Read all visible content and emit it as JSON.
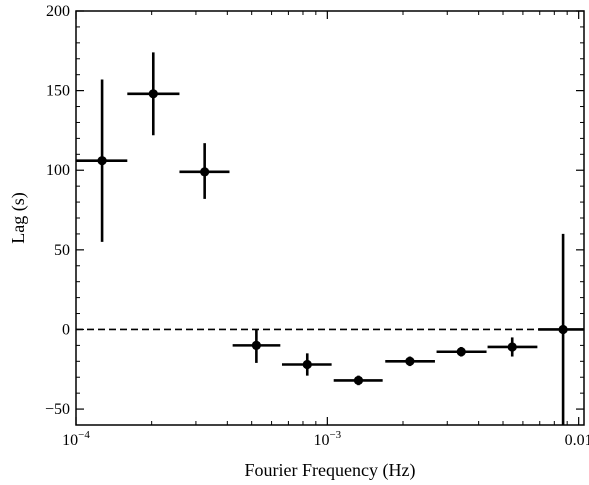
{
  "chart_data": {
    "type": "scatter",
    "title": "",
    "xlabel": "Fourier Frequency (Hz)",
    "ylabel": "Lag (s)",
    "xscale": "log",
    "xlim": [
      0.0001,
      0.0105
    ],
    "ylim": [
      -60,
      200
    ],
    "x_ticks": [
      {
        "value": 0.0001,
        "base": "10",
        "exp": "−4"
      },
      {
        "value": 0.001,
        "base": "10",
        "exp": "−3"
      },
      {
        "value": 0.01,
        "base": "0.01",
        "exp": ""
      }
    ],
    "y_ticks": [
      {
        "value": -50,
        "label": "−50"
      },
      {
        "value": 0,
        "label": "0"
      },
      {
        "value": 50,
        "label": "50"
      },
      {
        "value": 100,
        "label": "100"
      },
      {
        "value": 150,
        "label": "150"
      },
      {
        "value": 200,
        "label": "200"
      }
    ],
    "reference_line": {
      "y": 0,
      "style": "dashed"
    },
    "points": [
      {
        "x": 0.000127,
        "y": 106,
        "x_lo": 0.0001,
        "x_hi": 0.00016,
        "y_lo": 55,
        "y_hi": 157
      },
      {
        "x": 0.000203,
        "y": 148,
        "x_lo": 0.00016,
        "x_hi": 0.000258,
        "y_lo": 122,
        "y_hi": 174
      },
      {
        "x": 0.000325,
        "y": 99,
        "x_lo": 0.000258,
        "x_hi": 0.000408,
        "y_lo": 82,
        "y_hi": 117
      },
      {
        "x": 0.000522,
        "y": -10,
        "x_lo": 0.00042,
        "x_hi": 0.00065,
        "y_lo": -21,
        "y_hi": 0
      },
      {
        "x": 0.000832,
        "y": -22,
        "x_lo": 0.00066,
        "x_hi": 0.00104,
        "y_lo": -29,
        "y_hi": -15
      },
      {
        "x": 0.00133,
        "y": -32,
        "x_lo": 0.00106,
        "x_hi": 0.00166,
        "y_lo": -35,
        "y_hi": -29
      },
      {
        "x": 0.00213,
        "y": -20,
        "x_lo": 0.0017,
        "x_hi": 0.00268,
        "y_lo": -23,
        "y_hi": -17
      },
      {
        "x": 0.00341,
        "y": -14,
        "x_lo": 0.00272,
        "x_hi": 0.0043,
        "y_lo": -17,
        "y_hi": -11
      },
      {
        "x": 0.00544,
        "y": -11,
        "x_lo": 0.00434,
        "x_hi": 0.00685,
        "y_lo": -17,
        "y_hi": -5
      },
      {
        "x": 0.00867,
        "y": 0,
        "x_lo": 0.0069,
        "x_hi": 0.0105,
        "y_lo": -60,
        "y_hi": 60
      }
    ],
    "grid": false,
    "legend": "none",
    "colors": {
      "marker": "#000000",
      "axes": "#000000",
      "reference_line": "#000000"
    }
  }
}
